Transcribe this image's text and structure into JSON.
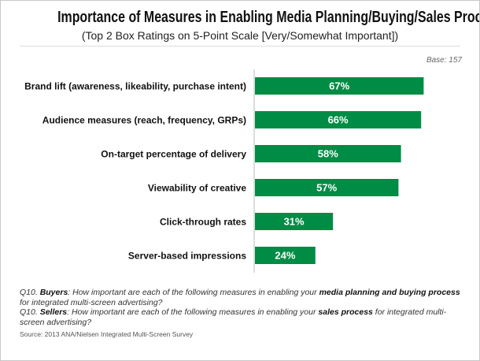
{
  "chart_data": {
    "type": "bar",
    "orientation": "horizontal",
    "title": "Importance of Measures in Enabling Media Planning/Buying/Sales Process",
    "subtitle": "(Top 2 Box Ratings on 5-Point Scale [Very/Somewhat Important])",
    "base_note": "Base: 157",
    "categories": [
      "Brand lift (awareness, likeability, purchase intent)",
      "Audience measures (reach, frequency, GRPs)",
      "On-target percentage of delivery",
      "Viewability of creative",
      "Click-through rates",
      "Server-based impressions"
    ],
    "values": [
      67,
      66,
      58,
      57,
      31,
      24
    ],
    "data_labels": [
      "67%",
      "66%",
      "58%",
      "57%",
      "31%",
      "24%"
    ],
    "xlim": [
      0,
      100
    ],
    "grid": false,
    "bar_color": "#008c45"
  },
  "notes": {
    "q1_prefix": "Q10. ",
    "q1_group": "Buyers",
    "q1_text_a": ": How important are each of the following measures in enabling your ",
    "q1_bold": "media planning and buying process",
    "q1_text_b": " for integrated multi-screen advertising?",
    "q2_prefix": "Q10. ",
    "q2_group": "Sellers",
    "q2_text_a": ": How important are each of the following measures in enabling your ",
    "q2_bold": "sales process",
    "q2_text_b": " for integrated multi-screen advertising?",
    "source": "Source: 2013 ANA/Nielsen Integrated Multi-Screen Survey"
  }
}
